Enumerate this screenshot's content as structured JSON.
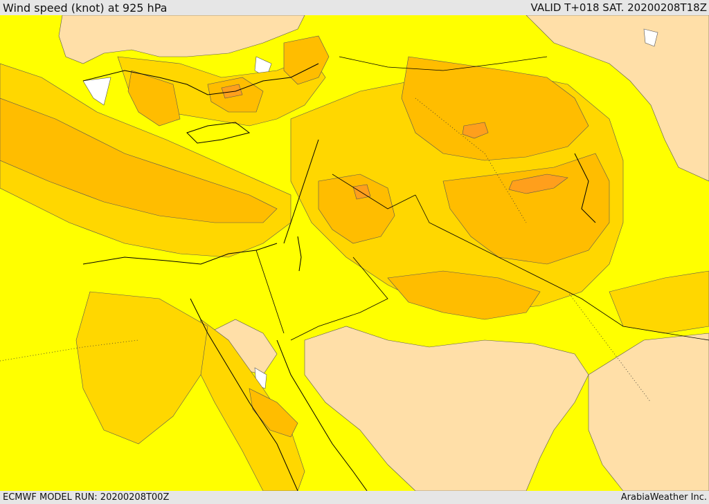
{
  "header": {
    "title": "Wind speed (knot) at 925 hPa",
    "valid": "VALID T+018 SAT. 20200208T18Z"
  },
  "footer": {
    "model_run": "ECMWF MODEL RUN: 20200208T00Z",
    "credit": "ArabiaWeather Inc."
  },
  "colors": {
    "band_lowest": "#ffffff",
    "band_low": "#ffdfa8",
    "band_mid": "#ffff00",
    "band_high": "#ffd700",
    "band_higher": "#ffbd00",
    "band_highest": "#ff9f1c",
    "borders": "#000000"
  }
}
